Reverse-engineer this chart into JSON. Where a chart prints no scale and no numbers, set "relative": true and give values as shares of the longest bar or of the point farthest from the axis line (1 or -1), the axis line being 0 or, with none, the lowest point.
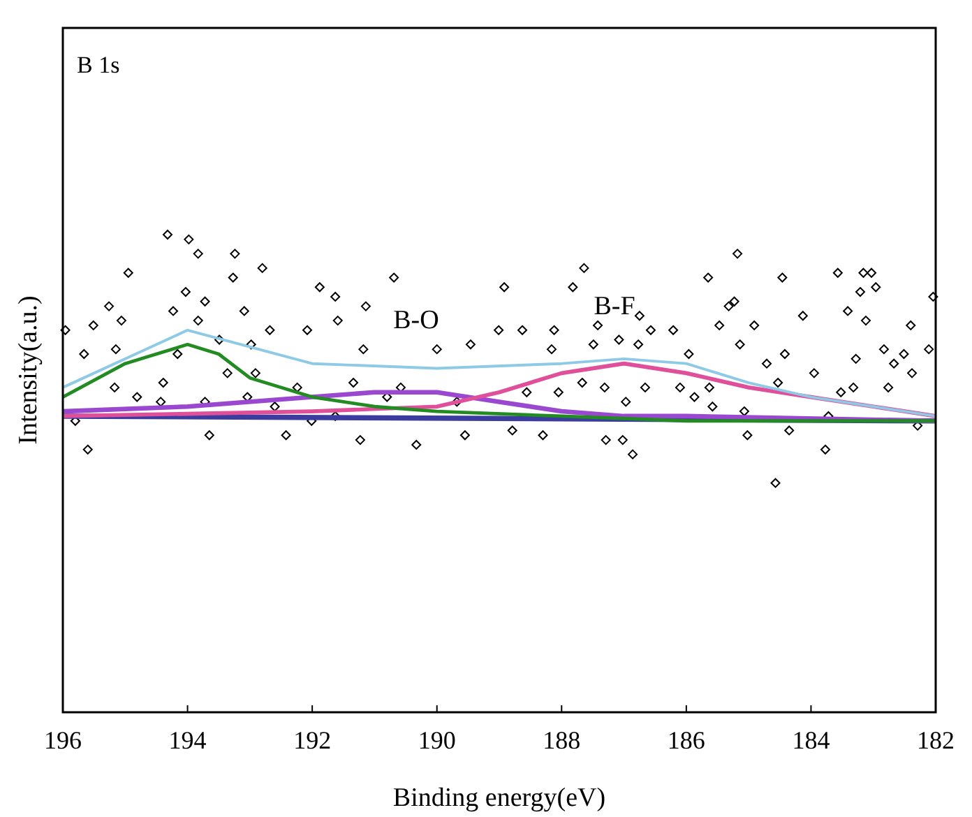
{
  "chart_data": {
    "type": "line",
    "relative": true,
    "xlabel": "Binding energy(eV)",
    "ylabel": "Intensity(a.u.)",
    "xlim": [
      196,
      182
    ],
    "xticks": [
      196,
      194,
      192,
      190,
      188,
      186,
      184,
      182
    ],
    "grid": false,
    "annotations": [
      "B 1s",
      "B-O",
      "B-F"
    ],
    "series": [
      {
        "type": "scatter",
        "marker": "diamond",
        "color": "#000000",
        "x": [
          194.32,
          193.98,
          193.83,
          193.24,
          194.95,
          192.8,
          193.27,
          194.03,
          193.72,
          195.26,
          194.23,
          193.09,
          193.83,
          195.51,
          195.06,
          191.88,
          191.63,
          190.69,
          191.14,
          191.59,
          192.08,
          192.68,
          193.49,
          195.96,
          195.66,
          195.15,
          194.16,
          192.98,
          191.18,
          190.0,
          189.46,
          195.17,
          194.81,
          194.39,
          193.36,
          192.91,
          192.24,
          191.34,
          190.58,
          193.04,
          193.72,
          194.43,
          190.8,
          192.6,
          192.01,
          191.23,
          190.33,
          192.42,
          193.65,
          195.6,
          195.8,
          189.55,
          191.63,
          189.68,
          185.18,
          187.64,
          184.46,
          183.57,
          183.03,
          183.16,
          188.92,
          187.82,
          185.65,
          185.23,
          185.32,
          182.96,
          183.21,
          182.04,
          183.41,
          186.75,
          187.42,
          186.57,
          186.21,
          185.47,
          184.91,
          184.13,
          183.12,
          182.4,
          188.63,
          188.12,
          187.08,
          188.16,
          187.49,
          186.77,
          185.96,
          185.14,
          184.71,
          184.42,
          183.95,
          183.28,
          182.83,
          182.51,
          182.67,
          182.38,
          182.11,
          189.01,
          188.56,
          188.05,
          187.67,
          187.31,
          186.66,
          186.1,
          185.87,
          185.58,
          185.63,
          184.53,
          183.52,
          183.32,
          182.76,
          186.97,
          183.72,
          185.07,
          188.79,
          188.3,
          187.29,
          187.02,
          186.86,
          185.02,
          184.35,
          183.77,
          184.57,
          182.29
        ],
        "values": [
          1.0,
          0.99,
          0.96,
          0.96,
          0.92,
          0.93,
          0.91,
          0.88,
          0.86,
          0.85,
          0.84,
          0.84,
          0.82,
          0.81,
          0.82,
          0.89,
          0.87,
          0.91,
          0.85,
          0.82,
          0.8,
          0.8,
          0.78,
          0.8,
          0.75,
          0.76,
          0.75,
          0.77,
          0.76,
          0.76,
          0.77,
          0.68,
          0.66,
          0.69,
          0.71,
          0.71,
          0.68,
          0.69,
          0.68,
          0.66,
          0.65,
          0.65,
          0.66,
          0.64,
          0.61,
          0.57,
          0.56,
          0.58,
          0.58,
          0.55,
          0.61,
          0.58,
          0.62,
          0.65,
          0.96,
          0.93,
          0.91,
          0.92,
          0.92,
          0.92,
          0.89,
          0.89,
          0.91,
          0.86,
          0.85,
          0.89,
          0.88,
          0.87,
          0.84,
          0.83,
          0.81,
          0.8,
          0.8,
          0.81,
          0.81,
          0.83,
          0.82,
          0.81,
          0.8,
          0.8,
          0.78,
          0.76,
          0.77,
          0.77,
          0.75,
          0.77,
          0.73,
          0.75,
          0.71,
          0.74,
          0.76,
          0.75,
          0.73,
          0.71,
          0.76,
          0.8,
          0.67,
          0.67,
          0.69,
          0.68,
          0.68,
          0.68,
          0.66,
          0.64,
          0.68,
          0.69,
          0.67,
          0.68,
          0.68,
          0.65,
          0.62,
          0.63,
          0.59,
          0.58,
          0.57,
          0.57,
          0.54,
          0.58,
          0.59,
          0.55,
          0.48,
          0.6
        ]
      },
      {
        "color": "#3c3ca0",
        "x": [
          196,
          182
        ],
        "values": [
          0.62,
          0.61
        ]
      },
      {
        "color": "#9a48d0",
        "x": [
          196,
          194,
          192,
          191,
          190,
          189,
          188,
          187,
          186,
          182
        ],
        "values": [
          0.63,
          0.64,
          0.66,
          0.67,
          0.67,
          0.65,
          0.63,
          0.62,
          0.62,
          0.61
        ]
      },
      {
        "color": "#e0509a",
        "x": [
          196,
          192,
          190,
          189,
          188,
          187,
          186,
          185,
          184,
          183,
          182
        ],
        "values": [
          0.62,
          0.63,
          0.64,
          0.67,
          0.71,
          0.73,
          0.71,
          0.68,
          0.66,
          0.64,
          0.62
        ]
      },
      {
        "color": "#228b22",
        "x": [
          196,
          195,
          194,
          193.5,
          193,
          192,
          191,
          190,
          188,
          186,
          182
        ],
        "values": [
          0.66,
          0.73,
          0.77,
          0.75,
          0.7,
          0.66,
          0.64,
          0.63,
          0.62,
          0.61,
          0.61
        ]
      },
      {
        "color": "#8ecae6",
        "x": [
          196,
          194,
          192,
          190,
          188,
          187,
          186,
          185,
          184,
          183,
          182
        ],
        "values": [
          0.68,
          0.8,
          0.73,
          0.72,
          0.73,
          0.74,
          0.73,
          0.69,
          0.66,
          0.64,
          0.62
        ]
      }
    ]
  }
}
